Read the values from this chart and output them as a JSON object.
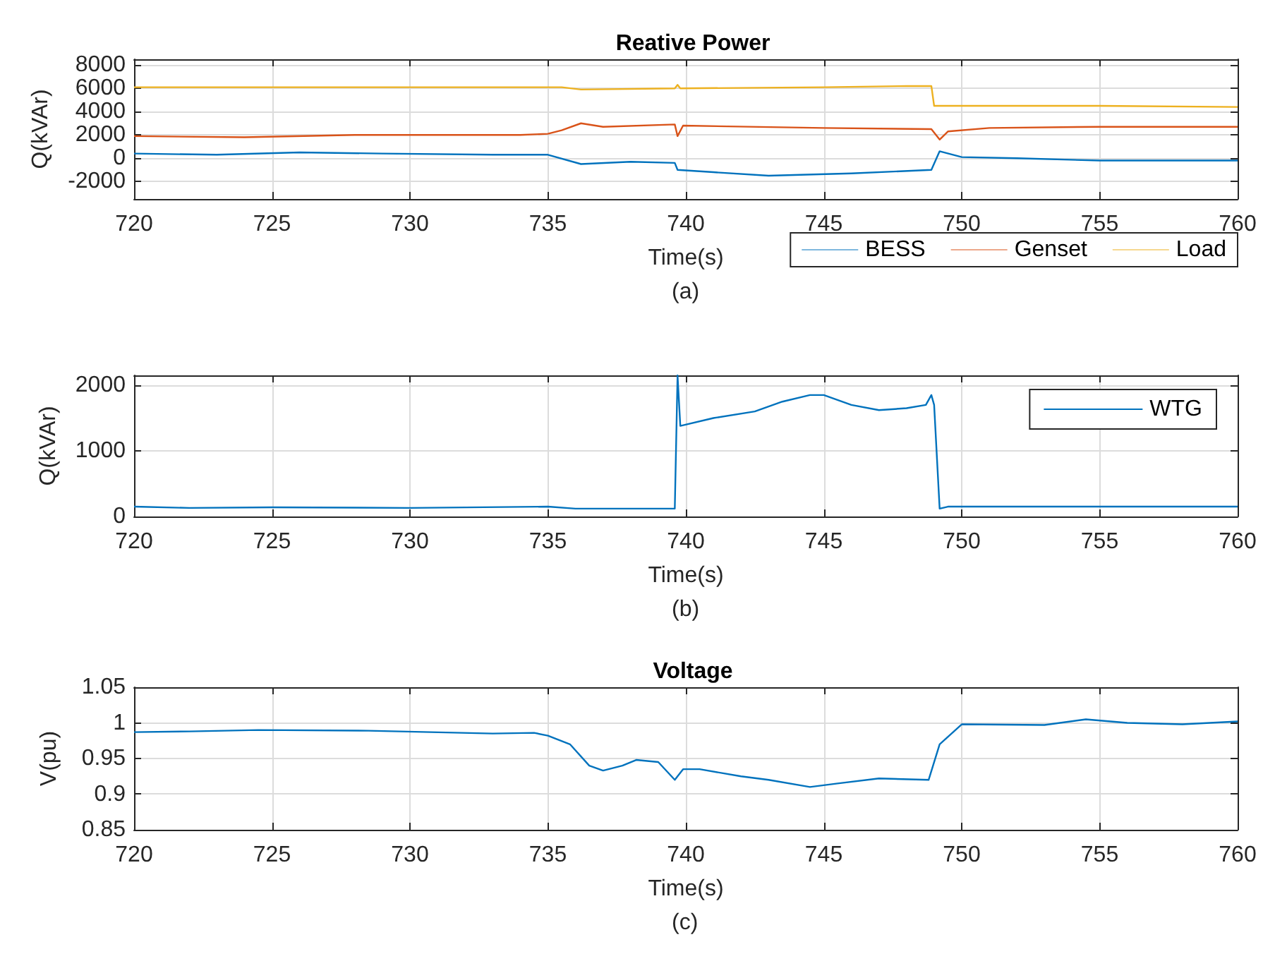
{
  "chart_data": [
    {
      "type": "line",
      "title": "Reative Power",
      "xlabel": "Time(s)",
      "ylabel": "Q(kVAr)",
      "annotations": [
        "(a)"
      ],
      "xlim": [
        720,
        760
      ],
      "xticks": [
        720,
        725,
        730,
        735,
        740,
        745,
        750,
        755,
        760
      ],
      "ylim": [
        -3500,
        8500
      ],
      "yticks": [
        -2000,
        0,
        2000,
        4000,
        6000,
        8000
      ],
      "grid": true,
      "legend": "bottom right",
      "marker": "none",
      "series": [
        {
          "name": "BESS",
          "color": "#0072bd",
          "x": [
            720,
            723,
            726,
            729,
            733,
            735,
            736.2,
            738,
            739.6,
            739.7,
            741,
            743,
            746,
            748.9,
            749.2,
            750,
            752,
            755,
            760
          ],
          "values": [
            400,
            300,
            500,
            400,
            300,
            300,
            -500,
            -300,
            -400,
            -1000,
            -1200,
            -1500,
            -1300,
            -1000,
            600,
            100,
            0,
            -200,
            -200
          ]
        },
        {
          "name": "Genset",
          "color": "#d95319",
          "x": [
            720,
            724,
            728,
            734,
            735,
            735.5,
            736.2,
            737,
            739.6,
            739.7,
            739.9,
            745,
            748.9,
            749.2,
            749.5,
            751,
            755,
            760
          ],
          "values": [
            1900,
            1800,
            2000,
            2000,
            2100,
            2400,
            3000,
            2700,
            2900,
            1900,
            2800,
            2600,
            2500,
            1600,
            2300,
            2600,
            2700,
            2700
          ]
        },
        {
          "name": "Load",
          "color": "#edb120",
          "x": [
            720,
            730,
            735.5,
            736.2,
            739.6,
            739.7,
            739.8,
            745,
            748,
            748.9,
            749,
            755,
            760
          ],
          "values": [
            6100,
            6100,
            6100,
            5900,
            6000,
            6300,
            6000,
            6100,
            6200,
            6200,
            4500,
            4500,
            4400
          ]
        }
      ]
    },
    {
      "type": "line",
      "xlabel": "Time(s)",
      "ylabel": "Q(kVAr)",
      "annotations": [
        "(b)"
      ],
      "xlim": [
        720,
        760
      ],
      "xticks": [
        720,
        725,
        730,
        735,
        740,
        745,
        750,
        755,
        760
      ],
      "ylim": [
        0,
        2150
      ],
      "yticks": [
        0,
        1000,
        2000
      ],
      "grid": true,
      "legend": "top right",
      "marker": "none",
      "series": [
        {
          "name": "WTG",
          "color": "#0072bd",
          "x": [
            720,
            722,
            725,
            730,
            735,
            736,
            739.6,
            739.7,
            739.8,
            741,
            742.5,
            743.5,
            744.5,
            745,
            746,
            747,
            748,
            748.7,
            748.9,
            749,
            749.2,
            749.5,
            755,
            760
          ],
          "values": [
            150,
            130,
            140,
            130,
            150,
            120,
            120,
            2150,
            1380,
            1500,
            1600,
            1750,
            1850,
            1850,
            1700,
            1620,
            1650,
            1700,
            1850,
            1700,
            120,
            150,
            150,
            150
          ]
        }
      ]
    },
    {
      "type": "line",
      "title": "Voltage",
      "xlabel": "Time(s)",
      "ylabel": "V(pu)",
      "annotations": [
        "(c)"
      ],
      "xlim": [
        720,
        760
      ],
      "xticks": [
        720,
        725,
        730,
        735,
        740,
        745,
        750,
        755,
        760
      ],
      "ylim": [
        0.85,
        1.05
      ],
      "yticks": [
        0.85,
        0.9,
        0.95,
        1,
        1.05
      ],
      "grid": true,
      "marker": "none",
      "series": [
        {
          "color": "#0072bd",
          "x": [
            720,
            722,
            724.5,
            728.5,
            733,
            734.5,
            735,
            735.8,
            736.5,
            737,
            737.7,
            738.2,
            739,
            739.6,
            739.9,
            740.5,
            742,
            743,
            744.5,
            745.5,
            747,
            748.8,
            749.2,
            750,
            753,
            754.5,
            756,
            758,
            760
          ],
          "values": [
            0.987,
            0.988,
            0.99,
            0.989,
            0.985,
            0.986,
            0.982,
            0.97,
            0.94,
            0.933,
            0.94,
            0.948,
            0.945,
            0.92,
            0.935,
            0.935,
            0.925,
            0.92,
            0.91,
            0.915,
            0.922,
            0.92,
            0.97,
            0.998,
            0.997,
            1.005,
            1.0,
            0.998,
            1.002
          ]
        }
      ]
    }
  ]
}
